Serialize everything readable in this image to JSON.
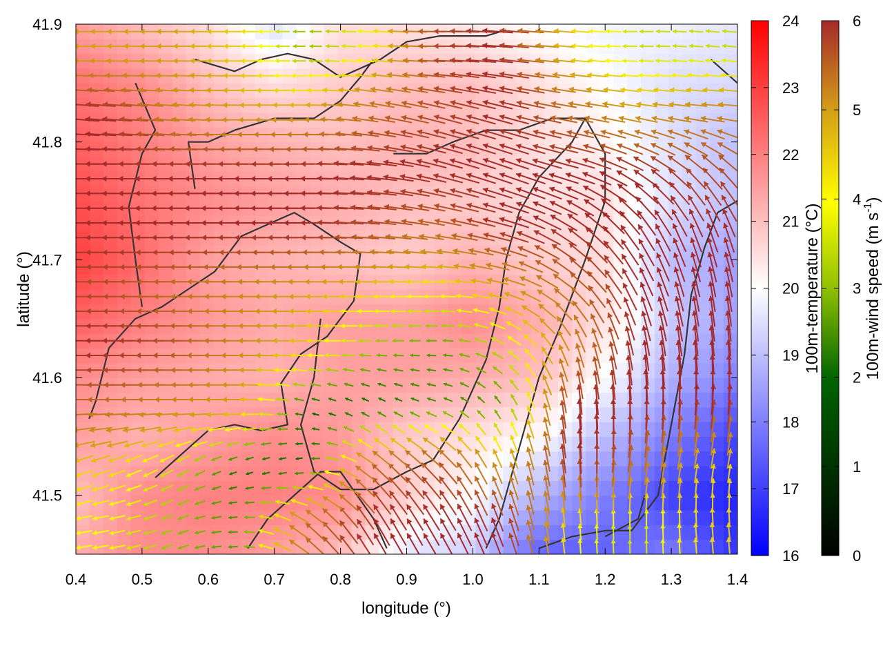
{
  "chart_data": {
    "type": "heatmap",
    "title": "",
    "xlabel": "longitude (°)",
    "ylabel": "latitude (°)",
    "xlim": [
      0.4,
      1.4
    ],
    "ylim": [
      41.45,
      41.9
    ],
    "x_ticks": [
      0.4,
      0.5,
      0.6,
      0.7,
      0.8,
      0.9,
      1.0,
      1.1,
      1.2,
      1.3,
      1.4
    ],
    "x_tick_labels": [
      "0.4",
      "0.5",
      "0.6",
      "0.7",
      "0.8",
      "0.9",
      "1.0",
      "1.1",
      "1.2",
      "1.3",
      "1.4"
    ],
    "y_ticks": [
      41.5,
      41.6,
      41.7,
      41.8,
      41.9
    ],
    "y_tick_labels": [
      "41.5",
      "41.6",
      "41.7",
      "41.8",
      "41.9"
    ],
    "grid": false,
    "temperature_colorbar": {
      "label": "100m-temperature (°C)",
      "range": [
        16,
        24
      ],
      "ticks": [
        16,
        17,
        18,
        19,
        20,
        21,
        22,
        23,
        24
      ],
      "tick_labels": [
        "16",
        "17",
        "18",
        "19",
        "20",
        "21",
        "22",
        "23",
        "24"
      ],
      "colors": [
        "#0000ff",
        "#ffffff",
        "#ff0000"
      ]
    },
    "wind_colorbar": {
      "label": "100m-wind speed (m s-1)",
      "range": [
        0,
        6
      ],
      "ticks": [
        0,
        1,
        2,
        3,
        4,
        5,
        6
      ],
      "tick_labels": [
        "0",
        "1",
        "2",
        "3",
        "4",
        "5",
        "6"
      ],
      "colors": [
        "#000000",
        "#006400",
        "#90c000",
        "#ffff00",
        "#d4a017",
        "#c07020",
        "#a52a2a"
      ]
    },
    "temperature_field": {
      "description_values": "approximate 100m temperature (°C) on a lon/lat grid",
      "lon": [
        0.4,
        0.5,
        0.6,
        0.7,
        0.8,
        0.9,
        1.0,
        1.1,
        1.2,
        1.3,
        1.4
      ],
      "lat": [
        41.9,
        41.85,
        41.8,
        41.75,
        41.7,
        41.65,
        41.6,
        41.55,
        41.5,
        41.45
      ],
      "values": [
        [
          21.5,
          21.0,
          20.5,
          19.5,
          20.5,
          20.5,
          20.3,
          20.0,
          19.8,
          19.8,
          19.6
        ],
        [
          22.2,
          21.8,
          21.0,
          20.5,
          20.8,
          21.0,
          21.0,
          20.5,
          20.0,
          19.5,
          19.4
        ],
        [
          22.5,
          22.0,
          21.5,
          21.2,
          21.0,
          21.2,
          21.0,
          20.5,
          20.2,
          19.5,
          19.0
        ],
        [
          22.8,
          22.2,
          21.8,
          21.5,
          21.3,
          21.0,
          20.8,
          20.5,
          20.5,
          19.5,
          19.0
        ],
        [
          23.0,
          22.3,
          21.5,
          21.2,
          21.0,
          20.8,
          21.2,
          20.8,
          20.5,
          19.0,
          18.5
        ],
        [
          22.5,
          22.0,
          21.6,
          21.3,
          21.5,
          21.5,
          21.8,
          21.3,
          20.5,
          19.2,
          18.5
        ],
        [
          21.8,
          21.5,
          21.3,
          21.2,
          21.5,
          21.5,
          21.3,
          21.0,
          20.0,
          18.8,
          18.0
        ],
        [
          21.5,
          21.2,
          21.5,
          21.8,
          21.6,
          20.8,
          20.5,
          20.0,
          19.0,
          18.0,
          17.0
        ],
        [
          21.0,
          21.8,
          22.0,
          22.0,
          21.8,
          20.8,
          20.0,
          18.8,
          18.0,
          17.0,
          16.5
        ],
        [
          21.3,
          21.8,
          21.8,
          21.5,
          21.0,
          19.5,
          19.2,
          17.5,
          17.5,
          18.0,
          16.8
        ]
      ]
    },
    "wind_field": {
      "description_values": "approximate 100m wind direction (degrees, math convention: 180 = toward west, 90 = toward north) and speed (m s-1)",
      "lon": [
        0.45,
        0.55,
        0.65,
        0.75,
        0.85,
        0.95,
        1.05,
        1.15,
        1.25,
        1.35
      ],
      "lat": [
        41.875,
        41.825,
        41.775,
        41.725,
        41.675,
        41.625,
        41.575,
        41.525,
        41.475
      ],
      "direction": [
        [
          180,
          180,
          180,
          180,
          175,
          180,
          175,
          175,
          180,
          175
        ],
        [
          175,
          175,
          180,
          180,
          170,
          165,
          165,
          170,
          170,
          175
        ],
        [
          180,
          180,
          180,
          180,
          175,
          165,
          160,
          165,
          150,
          135
        ],
        [
          180,
          180,
          180,
          180,
          175,
          170,
          165,
          145,
          125,
          110
        ],
        [
          180,
          180,
          180,
          180,
          180,
          180,
          165,
          140,
          115,
          100
        ],
        [
          180,
          180,
          180,
          180,
          180,
          180,
          150,
          110,
          100,
          95
        ],
        [
          180,
          180,
          180,
          165,
          150,
          160,
          120,
          95,
          90,
          85
        ],
        [
          200,
          210,
          200,
          190,
          140,
          135,
          110,
          95,
          80,
          80
        ],
        [
          190,
          200,
          180,
          140,
          120,
          120,
          110,
          95,
          90,
          95
        ]
      ],
      "speed": [
        [
          4.0,
          4.0,
          3.5,
          2.0,
          3.0,
          5.5,
          6.0,
          3.5,
          2.5,
          2.5
        ],
        [
          6.0,
          4.5,
          4.0,
          4.0,
          5.0,
          5.5,
          6.0,
          5.0,
          4.0,
          4.5
        ],
        [
          6.0,
          6.0,
          6.0,
          6.0,
          6.0,
          6.0,
          6.0,
          6.0,
          6.0,
          5.5
        ],
        [
          6.0,
          6.0,
          6.0,
          6.0,
          5.5,
          5.0,
          6.0,
          6.0,
          6.0,
          6.0
        ],
        [
          5.5,
          5.0,
          4.5,
          4.0,
          3.5,
          3.0,
          4.0,
          5.0,
          6.0,
          6.0
        ],
        [
          6.0,
          5.5,
          4.5,
          3.5,
          2.0,
          1.5,
          2.5,
          4.5,
          6.0,
          6.0
        ],
        [
          5.0,
          4.5,
          4.0,
          1.0,
          1.0,
          1.5,
          1.5,
          6.0,
          6.0,
          6.0
        ],
        [
          3.5,
          2.5,
          1.0,
          1.0,
          5.0,
          5.5,
          4.0,
          6.0,
          5.0,
          3.5
        ],
        [
          3.0,
          2.0,
          1.5,
          5.0,
          6.0,
          6.0,
          6.0,
          3.0,
          2.5,
          3.5
        ]
      ]
    },
    "coastline": [
      [
        [
          0.42,
          41.565
        ],
        [
          0.43,
          41.58
        ],
        [
          0.45,
          41.625
        ],
        [
          0.49,
          41.65
        ],
        [
          0.53,
          41.66
        ],
        [
          0.57,
          41.675
        ],
        [
          0.61,
          41.69
        ],
        [
          0.65,
          41.72
        ],
        [
          0.69,
          41.73
        ],
        [
          0.73,
          41.74
        ],
        [
          0.76,
          41.73
        ],
        [
          0.8,
          41.715
        ],
        [
          0.83,
          41.705
        ],
        [
          0.82,
          41.665
        ],
        [
          0.78,
          41.635
        ],
        [
          0.74,
          41.62
        ],
        [
          0.71,
          41.595
        ],
        [
          0.72,
          41.56
        ],
        [
          0.68,
          41.555
        ],
        [
          0.64,
          41.56
        ],
        [
          0.6,
          41.555
        ],
        [
          0.56,
          41.535
        ],
        [
          0.52,
          41.515
        ]
      ],
      [
        [
          0.5,
          41.66
        ],
        [
          0.49,
          41.7
        ],
        [
          0.48,
          41.745
        ],
        [
          0.5,
          41.79
        ],
        [
          0.52,
          41.81
        ],
        [
          0.49,
          41.85
        ]
      ],
      [
        [
          0.58,
          41.76
        ],
        [
          0.57,
          41.8
        ],
        [
          0.6,
          41.8
        ],
        [
          0.64,
          41.81
        ],
        [
          0.7,
          41.82
        ],
        [
          0.76,
          41.82
        ],
        [
          0.8,
          41.835
        ],
        [
          0.83,
          41.855
        ],
        [
          0.85,
          41.87
        ]
      ],
      [
        [
          0.58,
          41.87
        ],
        [
          0.64,
          41.86
        ],
        [
          0.68,
          41.87
        ],
        [
          0.72,
          41.875
        ],
        [
          0.76,
          41.87
        ],
        [
          0.8,
          41.855
        ],
        [
          0.86,
          41.87
        ],
        [
          0.9,
          41.885
        ],
        [
          0.95,
          41.89
        ],
        [
          1.02,
          41.89
        ],
        [
          1.05,
          41.895
        ]
      ],
      [
        [
          0.77,
          41.65
        ],
        [
          0.76,
          41.6
        ],
        [
          0.74,
          41.56
        ],
        [
          0.76,
          41.52
        ],
        [
          0.8,
          41.505
        ],
        [
          0.85,
          41.505
        ],
        [
          0.9,
          41.52
        ],
        [
          0.94,
          41.53
        ],
        [
          0.98,
          41.565
        ],
        [
          1.02,
          41.615
        ],
        [
          1.04,
          41.66
        ],
        [
          1.05,
          41.7
        ],
        [
          1.07,
          41.74
        ],
        [
          1.1,
          41.77
        ],
        [
          1.15,
          41.8
        ],
        [
          1.17,
          41.82
        ]
      ],
      [
        [
          0.88,
          41.79
        ],
        [
          0.93,
          41.79
        ],
        [
          0.97,
          41.8
        ],
        [
          1.02,
          41.81
        ],
        [
          1.07,
          41.81
        ],
        [
          1.12,
          41.82
        ],
        [
          1.17,
          41.82
        ],
        [
          1.2,
          41.79
        ],
        [
          1.2,
          41.75
        ],
        [
          1.17,
          41.7
        ],
        [
          1.13,
          41.64
        ],
        [
          1.1,
          41.6
        ],
        [
          1.08,
          41.56
        ],
        [
          1.06,
          41.52
        ],
        [
          1.04,
          41.48
        ],
        [
          1.02,
          41.455
        ]
      ],
      [
        [
          0.66,
          41.455
        ],
        [
          0.69,
          41.48
        ],
        [
          0.73,
          41.5
        ],
        [
          0.77,
          41.52
        ],
        [
          0.8,
          41.52
        ],
        [
          0.85,
          41.48
        ],
        [
          0.87,
          41.455
        ]
      ],
      [
        [
          1.1,
          41.455
        ],
        [
          1.15,
          41.465
        ],
        [
          1.2,
          41.47
        ],
        [
          1.24,
          41.47
        ],
        [
          1.28,
          41.5
        ],
        [
          1.3,
          41.56
        ],
        [
          1.32,
          41.62
        ],
        [
          1.33,
          41.67
        ],
        [
          1.35,
          41.71
        ],
        [
          1.37,
          41.74
        ],
        [
          1.4,
          41.75
        ]
      ],
      [
        [
          1.2,
          41.465
        ],
        [
          1.25,
          41.48
        ],
        [
          1.26,
          41.5
        ]
      ],
      [
        [
          1.36,
          41.87
        ],
        [
          1.38,
          41.86
        ],
        [
          1.4,
          41.85
        ]
      ]
    ]
  }
}
